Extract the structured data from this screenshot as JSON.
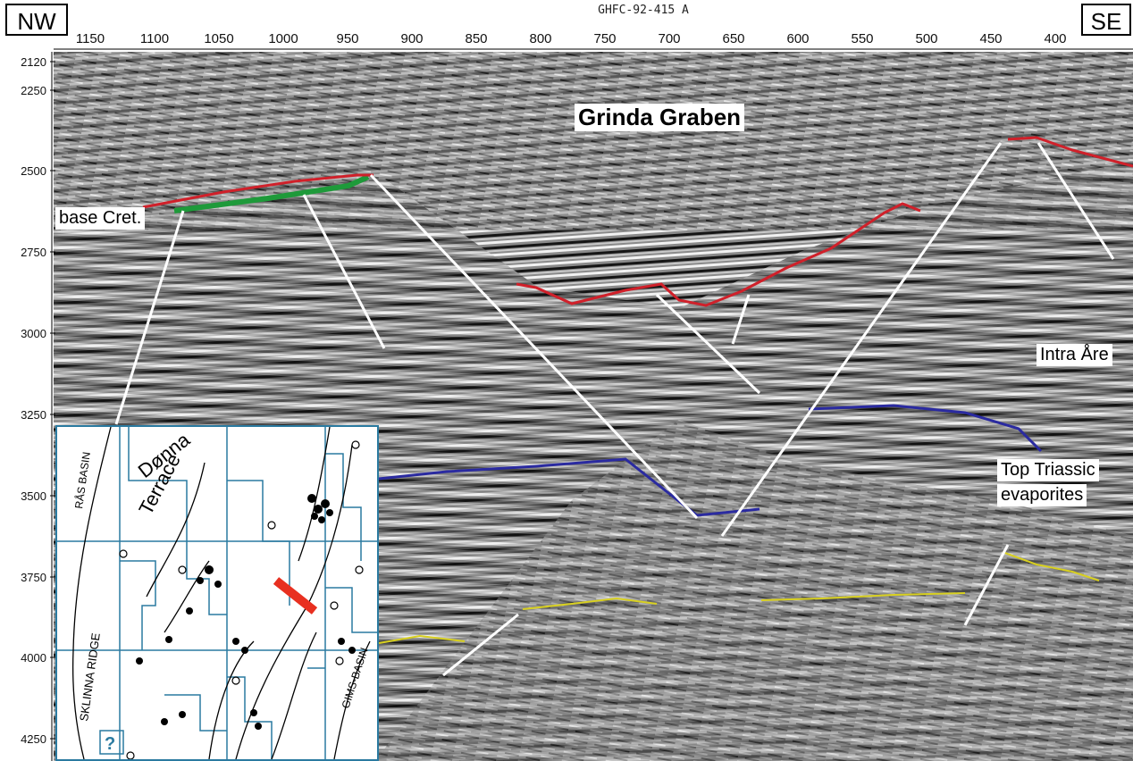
{
  "profile_title": "GHFC-92-415 A",
  "corner_left": "NW",
  "corner_right": "SE",
  "shotpoints": [
    "1150",
    "1100",
    "1050",
    "1000",
    "950",
    "900",
    "850",
    "800",
    "750",
    "700",
    "650",
    "600",
    "550",
    "500",
    "450",
    "400"
  ],
  "twt_ticks": [
    "2120",
    "2250",
    "2500",
    "2750",
    "3000",
    "3250",
    "3500",
    "3750",
    "4000",
    "4250"
  ],
  "labels": {
    "grinda": "Grinda Graben",
    "base_cret": "base Cret.",
    "intra_are": "Intra Åre",
    "top_triassic_1": "Top Triassic",
    "top_triassic_2": "evaporites"
  },
  "inset_map": {
    "donna_1": "Dønna",
    "donna_2": "Terrace",
    "ras_basin": "RÅS BASIN",
    "sklinna": "SKLINNA RIDGE",
    "gims": "GIMS-BASIN",
    "question": "?"
  },
  "colors": {
    "base_cret_line": "#d0202a",
    "green_horizon": "#1e9a3a",
    "intra_are_line": "#2a2aa0",
    "triassic_line": "#d8d020",
    "fault": "#ffffff",
    "section_marker": "#e83020",
    "map_grid": "#2a7aa0"
  }
}
